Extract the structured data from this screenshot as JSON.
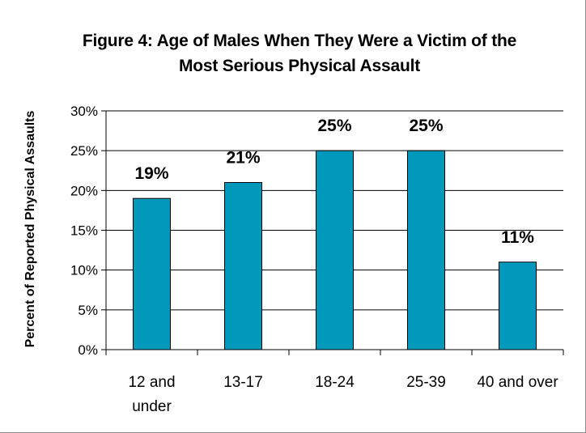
{
  "chart_data": {
    "type": "bar",
    "title_line1": "Figure 4: Age of Males When They Were a Victim of the",
    "title_line2": "Most Serious Physical Assault",
    "xlabel": "",
    "ylabel": "Percent of Reported Physical Assaults",
    "categories": [
      [
        "12 and",
        "under"
      ],
      [
        "13-17"
      ],
      [
        "18-24"
      ],
      [
        "25-39"
      ],
      [
        "40 and over"
      ]
    ],
    "values": [
      19,
      21,
      25,
      25,
      11
    ],
    "value_labels": [
      "19%",
      "21%",
      "25%",
      "25%",
      "11%"
    ],
    "ylim": [
      0,
      30
    ],
    "yticks": [
      0,
      5,
      10,
      15,
      20,
      25,
      30
    ],
    "ytick_labels": [
      "0%",
      "5%",
      "10%",
      "15%",
      "20%",
      "25%",
      "30%"
    ],
    "grid": true,
    "bar_color": "#0099bb",
    "bar_edge_color": "#000000"
  }
}
